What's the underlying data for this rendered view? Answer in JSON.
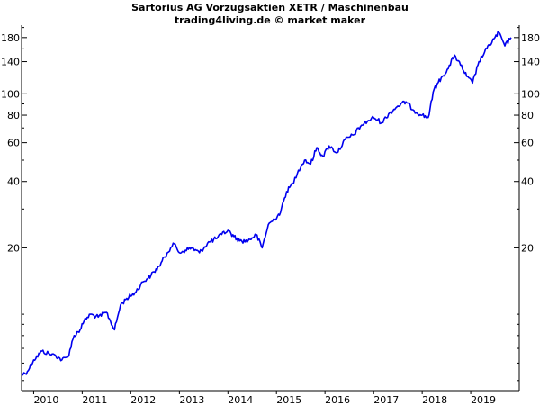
{
  "chart_data": {
    "type": "line",
    "title": "Sartorius AG Vorzugsaktien XETR / Maschinenbau",
    "subtitle": "trading4living.de © market maker",
    "xlabel": "",
    "ylabel": "",
    "y_scale": "log",
    "ylim": [
      4.5,
      205
    ],
    "xlim": [
      "2009-09",
      "2019-12"
    ],
    "grid": false,
    "y_ticks_major": [
      20,
      40,
      60,
      80,
      100,
      140,
      180
    ],
    "y_ticks_minor": [
      5,
      6,
      7,
      8,
      9,
      10,
      30,
      50,
      70,
      90,
      160,
      200
    ],
    "x_ticks": [
      "2010",
      "2011",
      "2012",
      "2013",
      "2014",
      "2015",
      "2016",
      "2017",
      "2018",
      "2019"
    ],
    "x_tick_positions": [
      "2009-12-01",
      "2010-12-01",
      "2011-12-01",
      "2012-12-01",
      "2013-12-01",
      "2014-12-01",
      "2015-12-01",
      "2016-12-01",
      "2017-12-01",
      "2018-12-01"
    ],
    "series": [
      {
        "color": "#0000ee",
        "x": [
          "2009-09-01",
          "2009-10-15",
          "2009-12-01",
          "2010-02-01",
          "2010-04-01",
          "2010-05-15",
          "2010-07-01",
          "2010-08-15",
          "2010-10-01",
          "2010-11-15",
          "2010-12-15",
          "2011-02-01",
          "2011-04-01",
          "2011-06-01",
          "2011-08-01",
          "2011-09-15",
          "2011-11-01",
          "2012-01-01",
          "2012-03-01",
          "2012-05-01",
          "2012-07-01",
          "2012-09-01",
          "2012-10-15",
          "2012-12-01",
          "2013-01-15",
          "2013-03-01",
          "2013-05-01",
          "2013-07-01",
          "2013-09-01",
          "2013-10-15",
          "2013-12-01",
          "2014-01-15",
          "2014-03-01",
          "2014-05-01",
          "2014-07-01",
          "2014-08-15",
          "2014-10-01",
          "2014-11-15",
          "2015-01-01",
          "2015-02-15",
          "2015-04-01",
          "2015-05-15",
          "2015-07-01",
          "2015-08-15",
          "2015-10-01",
          "2015-11-15",
          "2016-01-01",
          "2016-03-01",
          "2016-05-01",
          "2016-07-01",
          "2016-09-01",
          "2016-10-15",
          "2016-12-01",
          "2017-02-01",
          "2017-04-01",
          "2017-06-01",
          "2017-08-01",
          "2017-10-01",
          "2017-12-01",
          "2018-01-15",
          "2018-03-01",
          "2018-05-01",
          "2018-06-15",
          "2018-08-01",
          "2018-09-15",
          "2018-11-01",
          "2018-12-15",
          "2019-02-01",
          "2019-04-01",
          "2019-06-01",
          "2019-07-01",
          "2019-08-15",
          "2019-10-01"
        ],
        "values": [
          5.3,
          5.5,
          6.2,
          6.8,
          6.6,
          6.5,
          6.2,
          6.4,
          8.0,
          8.5,
          9.3,
          10.0,
          9.7,
          10.2,
          8.5,
          11.0,
          11.8,
          12.5,
          14.0,
          15.0,
          16.5,
          19.0,
          21.0,
          19.0,
          19.5,
          20.0,
          19.0,
          21.0,
          22.0,
          23.0,
          24.0,
          22.5,
          21.5,
          21.5,
          23.0,
          20.0,
          25.5,
          27.0,
          29.0,
          36.0,
          39.0,
          45.0,
          50.0,
          48.0,
          57.0,
          52.0,
          58.0,
          54.0,
          62.0,
          65.0,
          72.0,
          75.0,
          78.0,
          74.0,
          82.0,
          88.0,
          92.0,
          84.0,
          80.0,
          78.0,
          105.0,
          120.0,
          130.0,
          150.0,
          135.0,
          120.0,
          112.0,
          140.0,
          160.0,
          180.0,
          190.0,
          165.0,
          180.0
        ]
      }
    ]
  }
}
